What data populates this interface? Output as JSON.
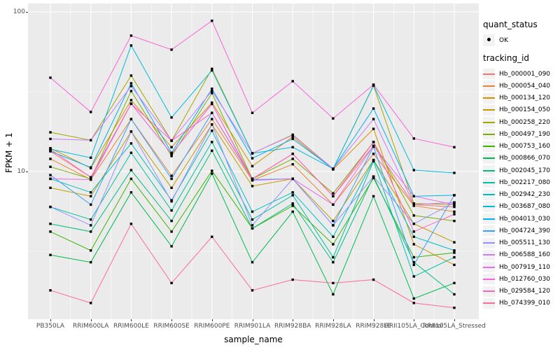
{
  "axes": {
    "x": {
      "title": "sample_name"
    },
    "y": {
      "title": "FPKM + 1",
      "ticks": [
        {
          "label": "100",
          "value": 100
        },
        {
          "label": "10",
          "value": 10
        }
      ]
    }
  },
  "legend": {
    "quant_status_title": "quant_status",
    "ok_label": "OK",
    "tracking_id_title": "tracking_id"
  },
  "chart_data": {
    "type": "line",
    "title": "",
    "xlabel": "sample_name",
    "ylabel": "FPKM + 1",
    "y_scale": "log10",
    "ylim": [
      1.12,
      105
    ],
    "y_major_gridlines": [
      10,
      100
    ],
    "y_minor_gridlines": [
      3.162,
      31.623
    ],
    "grid": true,
    "legend_position": "right",
    "panel_background": "#EBEBEB",
    "grid_color": "#FFFFFF",
    "point_color": "#000000",
    "point_shape": "square",
    "quant_status_values": [
      "OK"
    ],
    "categories": [
      "PB350LA",
      "RRIM600LA",
      "RRIM600LE",
      "RRIM600SE",
      "RRIM600PE",
      "RRIM901LA",
      "RRIM928BA",
      "RRIM928LA",
      "RRIM928LE",
      "RRII105LA_Control",
      "RRII105LA_Stressed"
    ],
    "series": [
      {
        "name": "Hb_000001_090",
        "color": "#F8766D",
        "values": [
          13.4,
          9.2,
          26.6,
          12.9,
          26.5,
          9.0,
          12.9,
          7.0,
          14.5,
          6.2,
          6.0
        ]
      },
      {
        "name": "Hb_000054_040",
        "color": "#EA8331",
        "values": [
          12.0,
          8.9,
          21.3,
          9.4,
          21.3,
          8.8,
          11.1,
          6.2,
          12.9,
          6.1,
          5.6
        ]
      },
      {
        "name": "Hb_000134_120",
        "color": "#D89000",
        "values": [
          14.0,
          10.5,
          28.0,
          14.2,
          27.0,
          10.8,
          16.5,
          10.3,
          18.5,
          3.5,
          2.6
        ]
      },
      {
        "name": "Hb_000154_050",
        "color": "#C09B00",
        "values": [
          7.9,
          7.0,
          17.8,
          7.9,
          19.7,
          8.1,
          9.0,
          4.9,
          11.8,
          4.7,
          3.6
        ]
      },
      {
        "name": "Hb_000258_220",
        "color": "#A3A500",
        "values": [
          17.6,
          15.7,
          39.9,
          15.6,
          44.0,
          13.0,
          17.0,
          10.4,
          34.5,
          6.3,
          6.2
        ]
      },
      {
        "name": "Hb_000497_190",
        "color": "#7CAE00",
        "values": [
          10.7,
          9.0,
          31.9,
          12.5,
          31.0,
          9.0,
          12.0,
          7.3,
          15.3,
          5.3,
          4.9
        ]
      },
      {
        "name": "Hb_000753_160",
        "color": "#39B600",
        "values": [
          4.2,
          3.2,
          9.0,
          4.2,
          10.1,
          4.4,
          6.1,
          3.5,
          9.1,
          2.9,
          3.1
        ]
      },
      {
        "name": "Hb_000866_070",
        "color": "#00BB4E",
        "values": [
          3.0,
          2.7,
          7.4,
          3.4,
          9.7,
          2.7,
          5.6,
          1.7,
          7.0,
          1.6,
          2.0
        ]
      },
      {
        "name": "Hb_002045_170",
        "color": "#00BF7D",
        "values": [
          4.7,
          4.2,
          10.2,
          4.9,
          13.5,
          4.4,
          6.3,
          2.7,
          9.3,
          2.7,
          1.7
        ]
      },
      {
        "name": "Hb_002217_080",
        "color": "#00C1A3",
        "values": [
          6.0,
          5.0,
          13.1,
          5.7,
          15.3,
          5.0,
          7.1,
          2.9,
          11.6,
          2.2,
          2.9
        ]
      },
      {
        "name": "Hb_002942_230",
        "color": "#00BFC4",
        "values": [
          9.0,
          7.4,
          15.0,
          6.6,
          18.0,
          5.6,
          7.4,
          3.9,
          11.8,
          3.9,
          3.2
        ]
      },
      {
        "name": "Hb_003687_080",
        "color": "#00BBDA",
        "values": [
          13.8,
          12.2,
          61.6,
          21.8,
          43.0,
          13.0,
          14.2,
          10.4,
          34.7,
          10.2,
          9.8
        ]
      },
      {
        "name": "Hb_004013_030",
        "color": "#00B0F6",
        "values": [
          13.4,
          10.6,
          35.7,
          13.1,
          33.0,
          12.1,
          16.0,
          10.4,
          24.8,
          7.0,
          7.1
        ]
      },
      {
        "name": "Hb_004724_390",
        "color": "#35A2FF",
        "values": [
          9.5,
          6.2,
          21.3,
          9.0,
          23.3,
          8.9,
          9.0,
          4.6,
          14.3,
          2.6,
          7.1
        ]
      },
      {
        "name": "Hb_005511_130",
        "color": "#9590FF",
        "values": [
          6.0,
          4.6,
          17.8,
          6.5,
          19.7,
          4.6,
          9.0,
          4.6,
          9.3,
          4.7,
          6.4
        ]
      },
      {
        "name": "Hb_006588_160",
        "color": "#C77CFF",
        "values": [
          16.0,
          15.7,
          34.3,
          15.6,
          32.0,
          13.0,
          16.9,
          10.4,
          21.3,
          6.2,
          6.4
        ]
      },
      {
        "name": "Hb_007919_110",
        "color": "#E76BF3",
        "values": [
          9.0,
          8.9,
          26.6,
          12.9,
          26.6,
          8.8,
          9.0,
          6.2,
          14.5,
          7.0,
          6.2
        ]
      },
      {
        "name": "Hb_012760_030",
        "color": "#FA62DB",
        "values": [
          38.7,
          23.6,
          71.0,
          58.0,
          88.0,
          23.3,
          36.8,
          21.5,
          35.0,
          16.1,
          14.2
        ]
      },
      {
        "name": "Hb_029584_120",
        "color": "#FF62BC",
        "values": [
          13.8,
          9.2,
          26.6,
          15.6,
          23.3,
          9.0,
          12.9,
          7.0,
          15.3,
          4.2,
          5.4
        ]
      },
      {
        "name": "Hb_074399_010",
        "color": "#FF6A98",
        "values": [
          1.8,
          1.5,
          4.7,
          2.0,
          3.9,
          1.8,
          2.1,
          2.0,
          2.1,
          1.5,
          1.4
        ]
      }
    ]
  }
}
